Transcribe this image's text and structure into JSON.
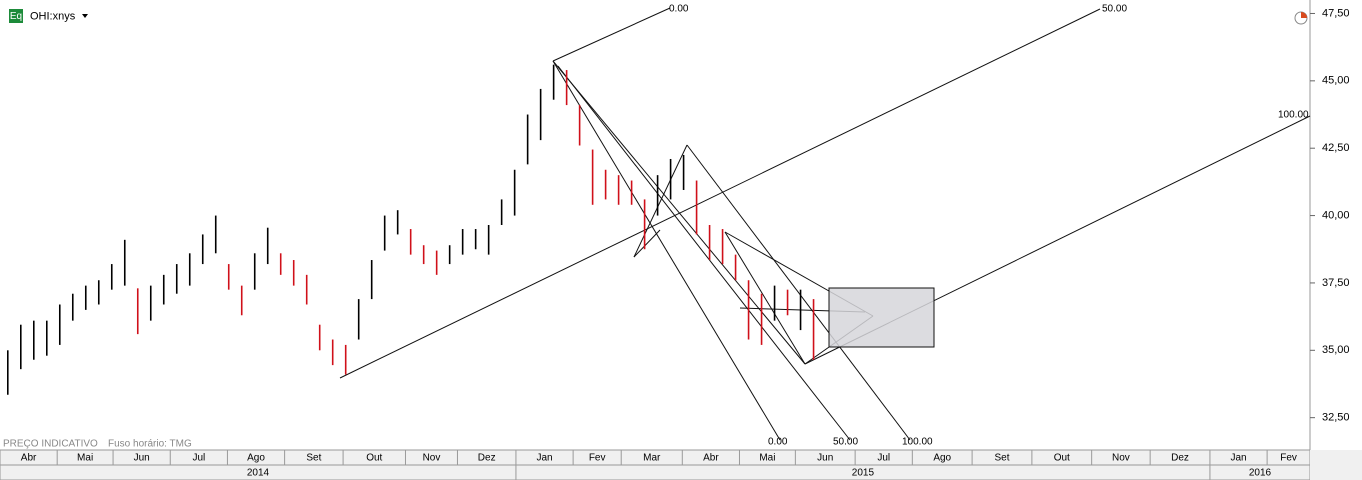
{
  "header": {
    "icon": "Eq",
    "symbol": "OHI:xnys"
  },
  "footer_notes": [
    "PREÇO INDICATIVO",
    "Fuso horário: TMG"
  ],
  "annotations": [
    "0.00",
    "50.00",
    "100.00",
    "0.00",
    "50.00",
    "100.00"
  ],
  "chart_data": {
    "type": "ohlc",
    "x": [
      0,
      1,
      2,
      3,
      4,
      5,
      6,
      7,
      8,
      9,
      10,
      11,
      12,
      13,
      14,
      15,
      16,
      17,
      18,
      19,
      20,
      21,
      22,
      23,
      24,
      25,
      26,
      27,
      28,
      29,
      30,
      31,
      32,
      33,
      34,
      35,
      36,
      37,
      38,
      39,
      40,
      41,
      42,
      43,
      44,
      45,
      46,
      47,
      48,
      49,
      50,
      51,
      52,
      53,
      54,
      55,
      56,
      57,
      58,
      59,
      60,
      61,
      62
    ],
    "lows": [
      33.35,
      34.3,
      34.65,
      34.8,
      35.2,
      36.1,
      36.5,
      36.7,
      37.25,
      37.4,
      35.6,
      36.1,
      36.7,
      37.1,
      37.4,
      38.2,
      38.6,
      37.25,
      36.3,
      37.25,
      38.2,
      37.8,
      37.4,
      36.7,
      35.0,
      34.45,
      34.1,
      35.4,
      36.9,
      38.7,
      39.3,
      38.55,
      38.2,
      37.8,
      38.2,
      38.55,
      38.75,
      38.55,
      39.65,
      40.0,
      41.9,
      42.8,
      44.3,
      44.1,
      42.6,
      40.4,
      40.6,
      40.4,
      40.4,
      38.75,
      40.0,
      40.6,
      40.95,
      39.3,
      38.35,
      38.2,
      37.6,
      35.4,
      35.2,
      36.1,
      36.3,
      35.75,
      34.65
    ],
    "highs": [
      35.0,
      35.95,
      36.1,
      36.1,
      36.7,
      37.1,
      37.4,
      37.6,
      38.2,
      39.1,
      37.3,
      37.4,
      37.8,
      38.2,
      38.6,
      39.3,
      40.0,
      38.2,
      37.4,
      38.6,
      39.55,
      38.6,
      38.35,
      37.8,
      35.95,
      35.4,
      35.2,
      36.9,
      38.35,
      40.0,
      40.2,
      39.5,
      38.9,
      38.7,
      38.9,
      39.5,
      39.5,
      39.65,
      40.6,
      41.7,
      43.75,
      44.7,
      45.6,
      45.4,
      44.1,
      42.45,
      41.7,
      41.5,
      41.3,
      40.6,
      41.5,
      42.1,
      42.25,
      41.3,
      39.65,
      39.5,
      38.55,
      37.6,
      37.1,
      37.4,
      37.25,
      37.25,
      36.9
    ],
    "color": "#000000",
    "down_color": "#d0101a",
    "xlim": [
      -0.6,
      100.2
    ],
    "xticks": [
      {
        "value": -0.6,
        "label": "Abr"
      },
      {
        "value": 3.8,
        "label": "Mai"
      },
      {
        "value": 8.1,
        "label": "Jun"
      },
      {
        "value": 12.5,
        "label": "Jul"
      },
      {
        "value": 16.9,
        "label": "Ago"
      },
      {
        "value": 21.3,
        "label": "Set"
      },
      {
        "value": 25.8,
        "label": "Out"
      },
      {
        "value": 30.6,
        "label": "Nov"
      },
      {
        "value": 34.6,
        "label": "Dez"
      },
      {
        "value": 39.1,
        "label": "Jan"
      },
      {
        "value": 43.5,
        "label": "Fev"
      },
      {
        "value": 47.2,
        "label": "Mar"
      },
      {
        "value": 51.9,
        "label": "Abr"
      },
      {
        "value": 56.3,
        "label": "Mai"
      },
      {
        "value": 60.6,
        "label": "Jun"
      },
      {
        "value": 65.2,
        "label": "Jul"
      },
      {
        "value": 69.6,
        "label": "Ago"
      },
      {
        "value": 74.2,
        "label": "Set"
      },
      {
        "value": 78.8,
        "label": "Out"
      },
      {
        "value": 83.4,
        "label": "Nov"
      },
      {
        "value": 87.9,
        "label": "Dez"
      },
      {
        "value": 92.5,
        "label": "Jan"
      },
      {
        "value": 96.9,
        "label": "Fev"
      }
    ],
    "years": [
      {
        "value": -0.6,
        "label": "2014"
      },
      {
        "value": 39.1,
        "label": "2015"
      },
      {
        "value": 92.5,
        "label": "2016"
      }
    ],
    "ylim": [
      31.3,
      48.0
    ],
    "yticks": [
      {
        "value": 32.5,
        "label": "32,50"
      },
      {
        "value": 35,
        "label": "35,00"
      },
      {
        "value": 37.5,
        "label": "37,50"
      },
      {
        "value": 40,
        "label": "40,00"
      },
      {
        "value": 42.5,
        "label": "42,50"
      },
      {
        "value": 45,
        "label": "45,00"
      },
      {
        "value": 47.5,
        "label": "47,50"
      }
    ]
  }
}
